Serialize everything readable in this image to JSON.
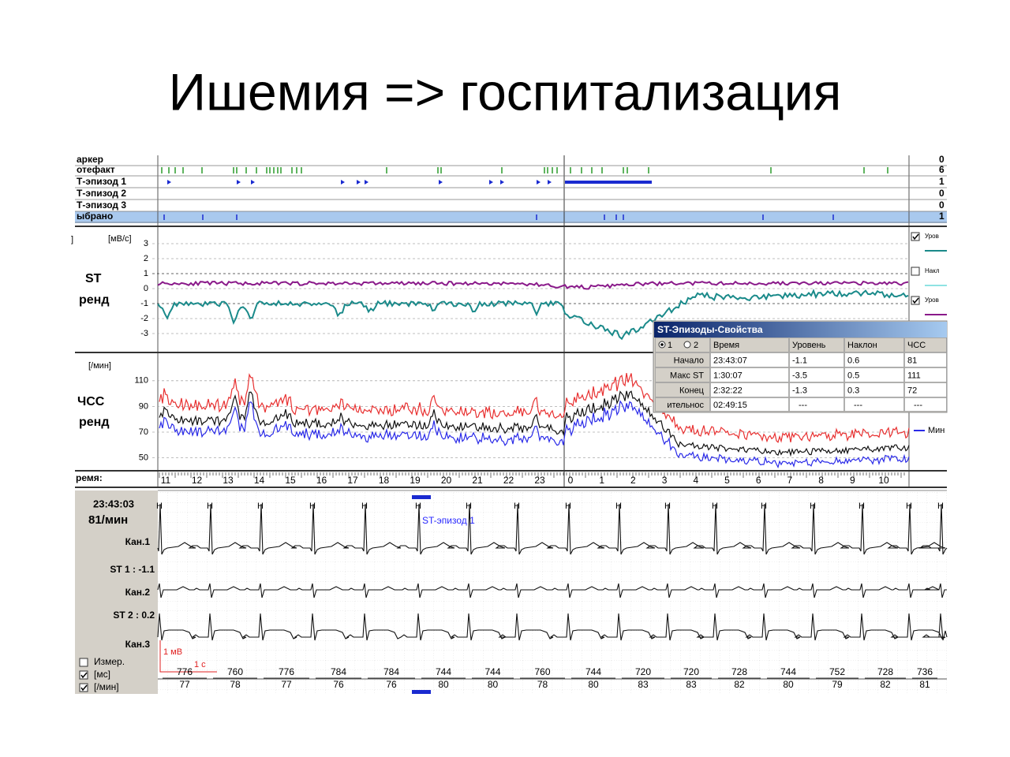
{
  "title": "Ишемия => госпитализация",
  "events": {
    "rows": [
      {
        "label": "аркер",
        "count": "0"
      },
      {
        "label": "отефакт",
        "count": "6"
      },
      {
        "label": "Т-эпизод 1",
        "count": "1"
      },
      {
        "label": "Т-эпизод 2",
        "count": "0"
      },
      {
        "label": "Т-эпизод 3",
        "count": "0"
      },
      {
        "label": "ыбрано",
        "count": "1"
      }
    ]
  },
  "st_trend": {
    "unit_left": "]",
    "unit": "[мВ/с]",
    "label1": "ST",
    "label2": "ренд",
    "yticks": [
      3,
      2,
      1,
      0,
      -1,
      -2,
      -3
    ],
    "legend": [
      "Уров",
      "Накл",
      "Уров"
    ]
  },
  "hr_trend": {
    "unit": "[/мин]",
    "label1": "ЧСС",
    "label2": "ренд",
    "yticks": [
      110,
      90,
      70,
      50
    ],
    "legend": [
      "Мин"
    ]
  },
  "time_axis": {
    "label": "ремя:",
    "ticks": [
      11,
      12,
      13,
      14,
      15,
      16,
      17,
      18,
      19,
      20,
      21,
      22,
      23,
      0,
      1,
      2,
      3,
      4,
      5,
      6,
      7,
      8,
      9,
      10
    ]
  },
  "popup": {
    "title": "ST-Эпизоды-Свойства",
    "header": [
      "1",
      "2",
      "Время",
      "Уровень",
      "Наклон",
      "ЧСС"
    ],
    "rows": [
      [
        "Начало",
        "23:43:07",
        "-1.1",
        "0.6",
        "81"
      ],
      [
        "Макс ST",
        "1:30:07",
        "-3.5",
        "0.5",
        "111"
      ],
      [
        "Конец",
        "2:32:22",
        "-1.3",
        "0.3",
        "72"
      ],
      [
        "ительнос",
        "02:49:15",
        "---",
        "---",
        "---"
      ]
    ]
  },
  "ecg": {
    "time": "23:43:03",
    "rate": "81/мин",
    "ch1": "Кан.1",
    "st1": "ST 1 : -1.1",
    "ch2": "Кан.2",
    "st2": "ST 2 : 0.2",
    "ch3": "Кан.3",
    "checks": [
      "Измер.",
      "[мс]",
      "[/мин]"
    ],
    "beat_label": "Н",
    "episode": "ST-эпизод 1",
    "mv": "1 мВ",
    "sec": "1 с",
    "rr": [
      "776",
      "760",
      "776",
      "784",
      "784",
      "744",
      "744",
      "760",
      "744",
      "720",
      "720",
      "728",
      "744",
      "752",
      "728",
      "736"
    ],
    "hr": [
      "77",
      "78",
      "77",
      "76",
      "76",
      "80",
      "80",
      "78",
      "80",
      "83",
      "83",
      "82",
      "80",
      "79",
      "82",
      "81"
    ]
  }
}
